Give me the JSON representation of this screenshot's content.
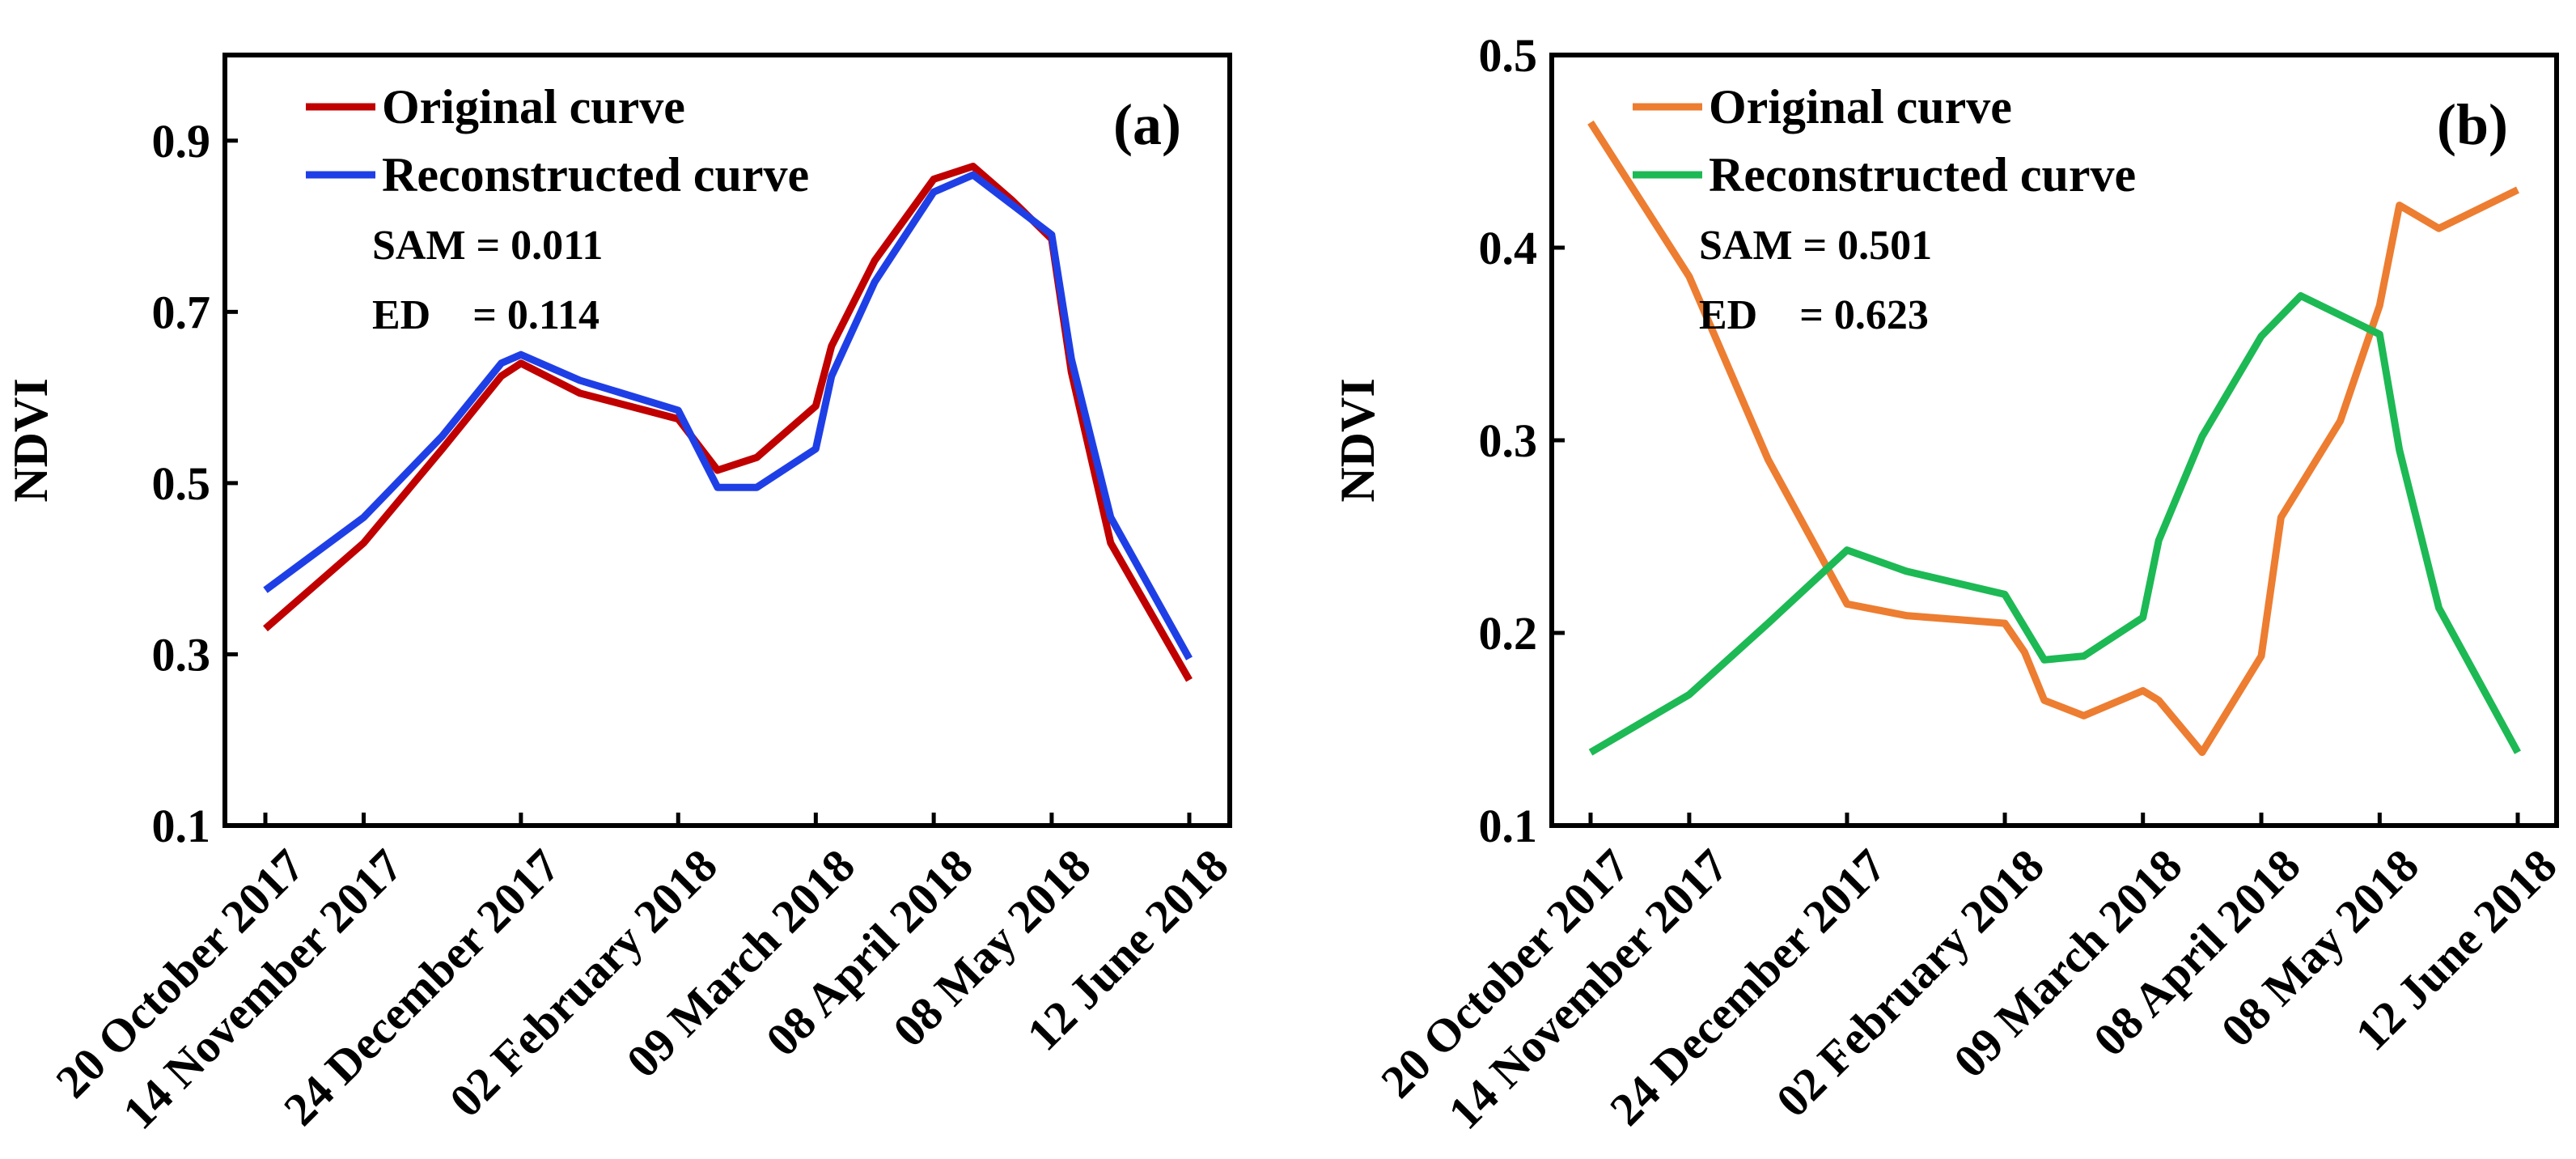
{
  "chart_data": [
    {
      "type": "line",
      "panel_label": "(a)",
      "ylabel": "NDVI",
      "xlabel": "",
      "ylim": [
        0.1,
        1.0
      ],
      "y_ticks": [
        0.1,
        0.3,
        0.5,
        0.7,
        0.9
      ],
      "y_tick_labels": [
        "0.1",
        "0.3",
        "0.5",
        "0.7",
        "0.9"
      ],
      "x_range": [
        "2017-10-20",
        "2018-06-12"
      ],
      "x_ticks": [
        "2017-10-20",
        "2017-11-14",
        "2017-12-24",
        "2018-02-02",
        "2018-03-09",
        "2018-04-08",
        "2018-05-08",
        "2018-06-12"
      ],
      "x_tick_labels": [
        "20 October 2017",
        "14 November 2017",
        "24 December 2017",
        "02 February 2018",
        "09 March 2018",
        "08 April 2018",
        "08 May 2018",
        "12 June 2018"
      ],
      "grid": false,
      "legend": "top-left",
      "annotations": [
        "SAM = 0.011",
        "ED    = 0.114"
      ],
      "series": [
        {
          "name": "Original curve",
          "color": "#c00000",
          "x": [
            "2017-10-20",
            "2017-11-14",
            "2017-12-04",
            "2017-12-19",
            "2017-12-24",
            "2018-01-08",
            "2018-02-02",
            "2018-02-12",
            "2018-02-22",
            "2018-03-09",
            "2018-03-13",
            "2018-03-24",
            "2018-04-08",
            "2018-04-18",
            "2018-04-28",
            "2018-05-08",
            "2018-05-13",
            "2018-05-23",
            "2018-06-12"
          ],
          "values": [
            0.33,
            0.43,
            0.54,
            0.625,
            0.64,
            0.605,
            0.575,
            0.515,
            0.53,
            0.59,
            0.66,
            0.76,
            0.855,
            0.87,
            0.83,
            0.785,
            0.63,
            0.43,
            0.27
          ]
        },
        {
          "name": "Reconstructed curve",
          "color": "#1f3fe6",
          "x": [
            "2017-10-20",
            "2017-11-14",
            "2017-12-04",
            "2017-12-19",
            "2017-12-24",
            "2018-01-08",
            "2018-02-02",
            "2018-02-12",
            "2018-02-22",
            "2018-03-09",
            "2018-03-13",
            "2018-03-24",
            "2018-04-08",
            "2018-04-18",
            "2018-04-28",
            "2018-05-08",
            "2018-05-13",
            "2018-05-23",
            "2018-06-12"
          ],
          "values": [
            0.375,
            0.46,
            0.555,
            0.64,
            0.65,
            0.62,
            0.585,
            0.495,
            0.495,
            0.54,
            0.625,
            0.735,
            0.84,
            0.86,
            0.825,
            0.79,
            0.645,
            0.46,
            0.295
          ]
        }
      ]
    },
    {
      "type": "line",
      "panel_label": "(b)",
      "ylabel": "NDVI",
      "xlabel": "",
      "ylim": [
        0.1,
        0.5
      ],
      "y_ticks": [
        0.1,
        0.2,
        0.3,
        0.4,
        0.5
      ],
      "y_tick_labels": [
        "0.1",
        "0.2",
        "0.3",
        "0.4",
        "0.5"
      ],
      "x_range": [
        "2017-10-20",
        "2018-06-12"
      ],
      "x_ticks": [
        "2017-10-20",
        "2017-11-14",
        "2017-12-24",
        "2018-02-02",
        "2018-03-09",
        "2018-04-08",
        "2018-05-08",
        "2018-06-12"
      ],
      "x_tick_labels": [
        "20 October 2017",
        "14 November 2017",
        "24 December 2017",
        "02 February 2018",
        "09 March 2018",
        "08 April 2018",
        "08 May 2018",
        "12 June 2018"
      ],
      "grid": false,
      "legend": "top-left",
      "annotations": [
        "SAM = 0.501",
        "ED    = 0.623"
      ],
      "series": [
        {
          "name": "Original curve",
          "color": "#ed7d31",
          "x": [
            "2017-10-20",
            "2017-11-14",
            "2017-12-04",
            "2017-12-24",
            "2018-01-08",
            "2018-02-02",
            "2018-02-07",
            "2018-02-12",
            "2018-02-22",
            "2018-03-09",
            "2018-03-13",
            "2018-03-24",
            "2018-04-08",
            "2018-04-13",
            "2018-04-28",
            "2018-05-08",
            "2018-05-13",
            "2018-05-23",
            "2018-06-12"
          ],
          "values": [
            0.465,
            0.385,
            0.29,
            0.215,
            0.209,
            0.205,
            0.19,
            0.165,
            0.157,
            0.17,
            0.165,
            0.138,
            0.188,
            0.26,
            0.31,
            0.37,
            0.422,
            0.41,
            0.43
          ]
        },
        {
          "name": "Reconstructed curve",
          "color": "#1db954",
          "x": [
            "2017-10-20",
            "2017-11-14",
            "2017-12-04",
            "2017-12-24",
            "2018-01-08",
            "2018-02-02",
            "2018-02-12",
            "2018-02-22",
            "2018-03-09",
            "2018-03-13",
            "2018-03-24",
            "2018-04-08",
            "2018-04-18",
            "2018-05-08",
            "2018-05-13",
            "2018-05-23",
            "2018-06-12"
          ],
          "values": [
            0.138,
            0.168,
            0.205,
            0.243,
            0.232,
            0.22,
            0.186,
            0.188,
            0.208,
            0.248,
            0.302,
            0.354,
            0.375,
            0.355,
            0.295,
            0.213,
            0.138
          ]
        }
      ]
    }
  ]
}
